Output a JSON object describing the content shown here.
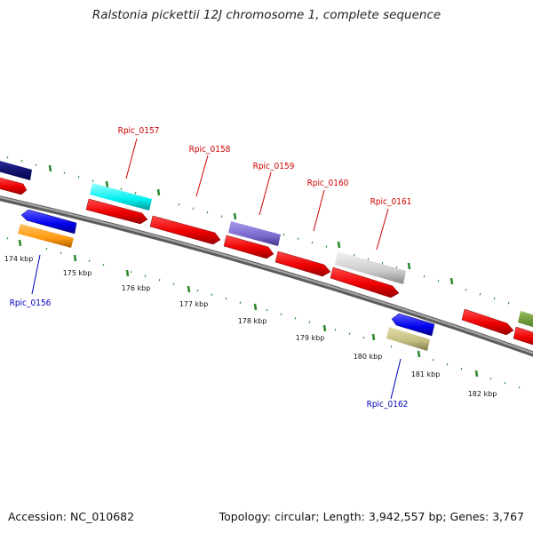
{
  "title": "Ralstonia pickettii 12J chromosome 1, complete sequence",
  "footer": {
    "accession": "Accession: NC_010682",
    "summary": "Topology: circular; Length: 3,942,557 bp; Genes: 3,767"
  },
  "scale_labels": [
    "174 kbp",
    "175 kbp",
    "176 kbp",
    "177 kbp",
    "178 kbp",
    "179 kbp",
    "180 kbp",
    "181 kbp",
    "182 kbp"
  ],
  "gene_labels": {
    "rpic_0156": "Rpic_0156",
    "rpic_0157": "Rpic_0157",
    "rpic_0158": "Rpic_0158",
    "rpic_0159": "Rpic_0159",
    "rpic_0160": "Rpic_0160",
    "rpic_0161": "Rpic_0161",
    "rpic_0162": "Rpic_0162"
  },
  "colors": {
    "forward_label": "#cc0000",
    "reverse_label": "#0000bb",
    "tick": "#2f8a2f",
    "backbone": "#7a7a7a"
  }
}
